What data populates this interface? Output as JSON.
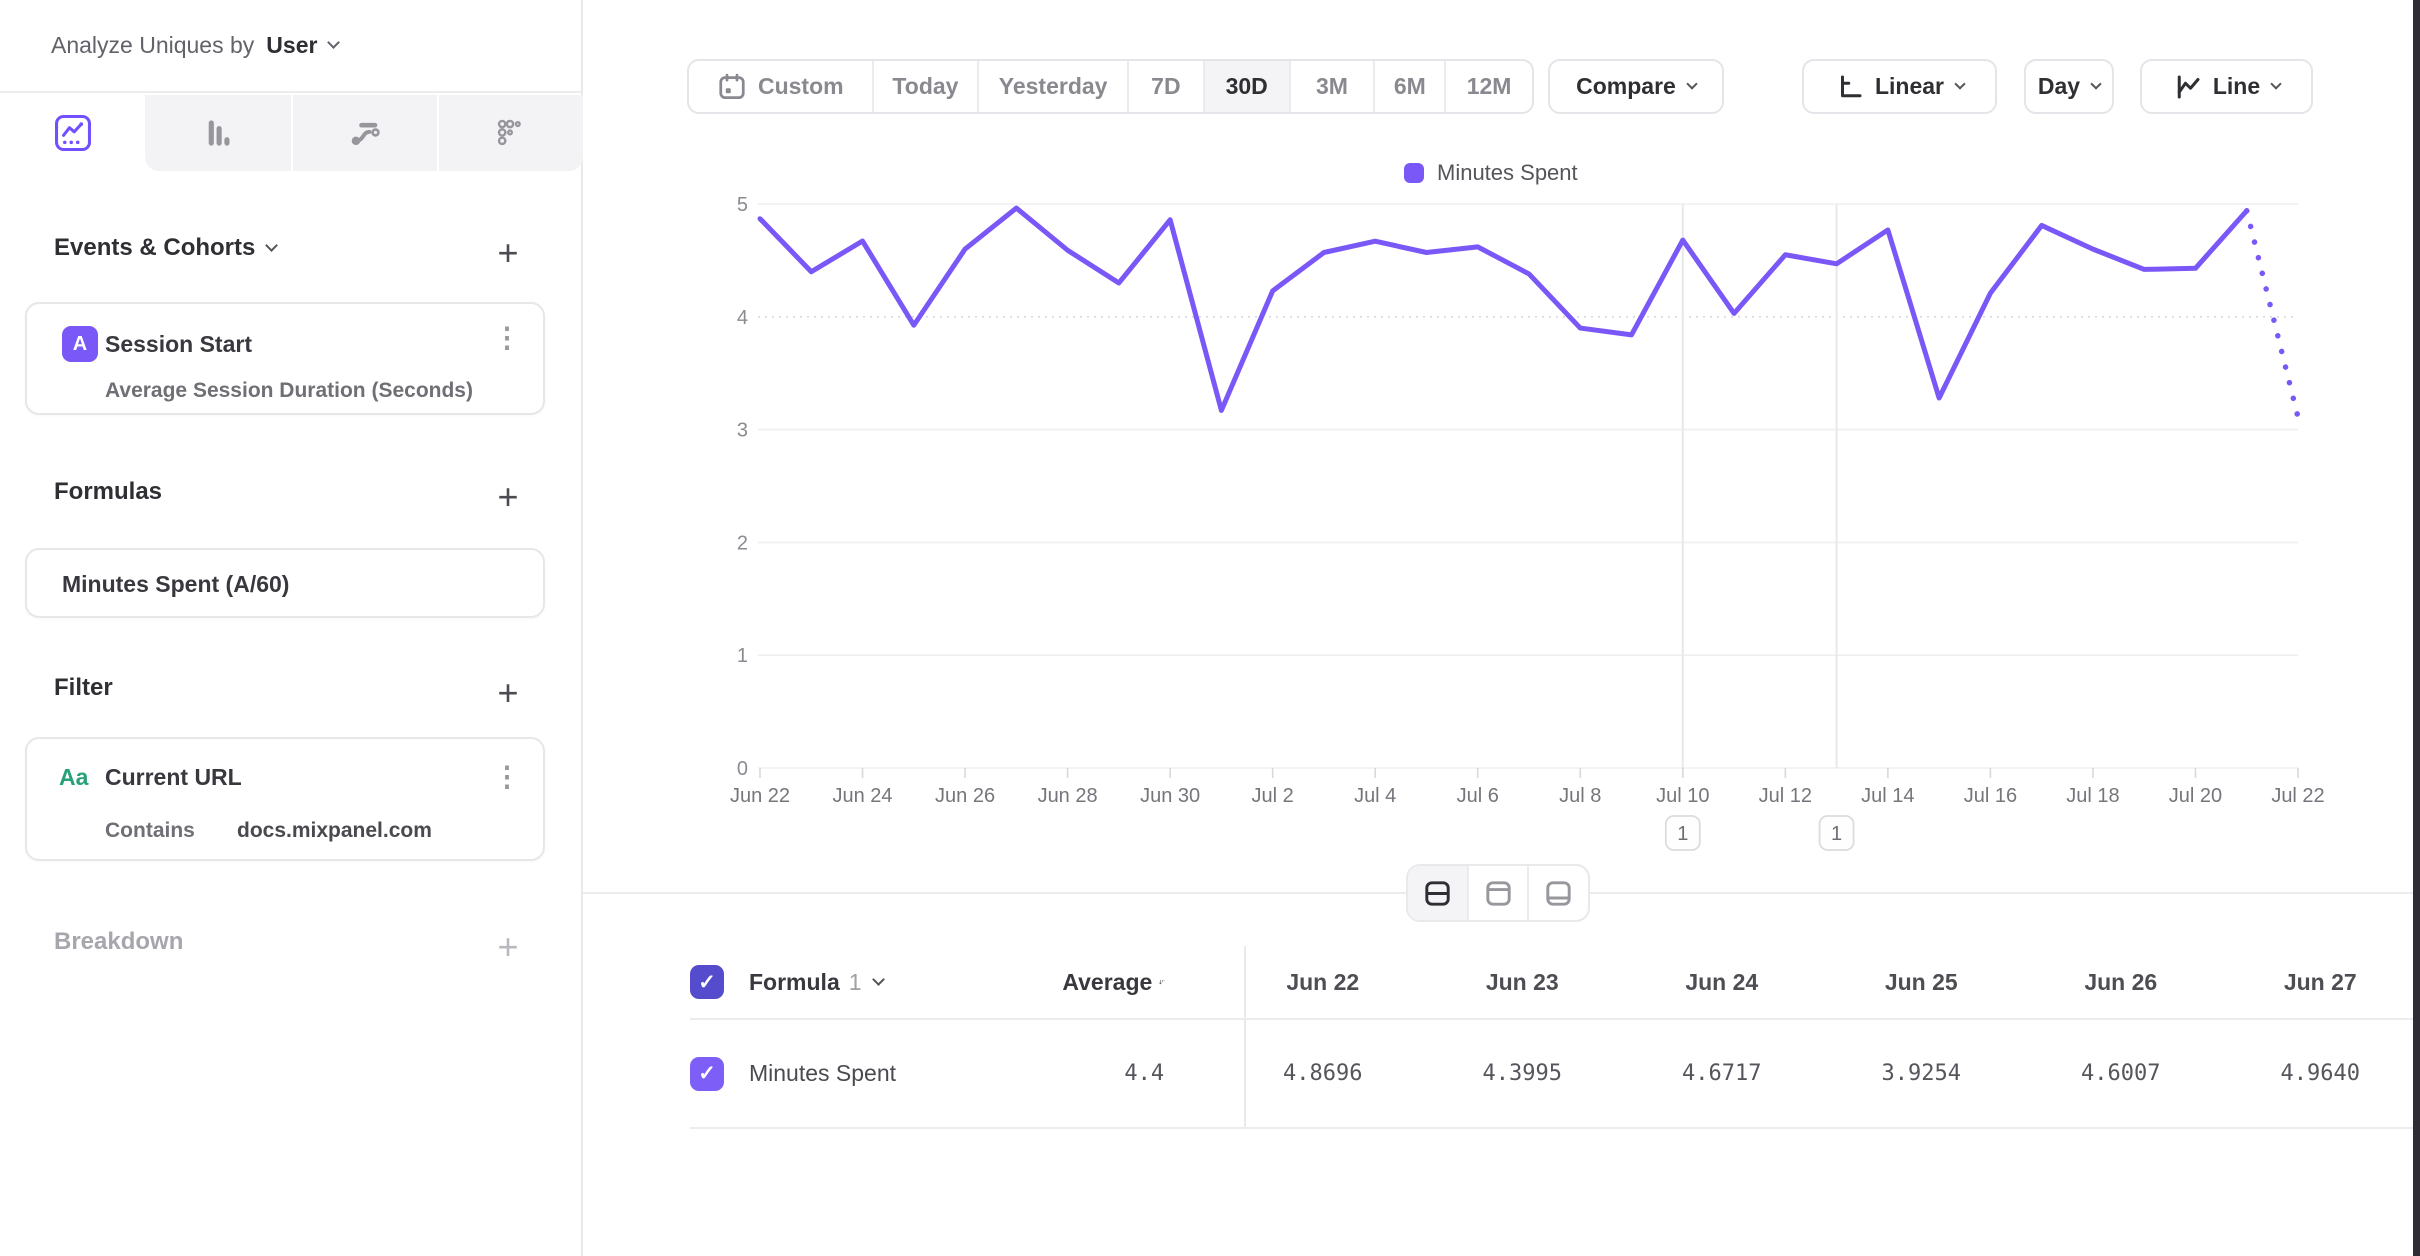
{
  "sidebar": {
    "analyze_label": "Analyze Uniques by",
    "analyze_value": "User",
    "tabs": [
      "insights-line",
      "bar",
      "flows",
      "retention"
    ],
    "events_title": "Events & Cohorts",
    "event_card": {
      "badge": "A",
      "title": "Session Start",
      "subtitle": "Average Session Duration (Seconds)"
    },
    "formulas_title": "Formulas",
    "formula_card": {
      "title": "Minutes Spent (A/60)"
    },
    "filter_title": "Filter",
    "filter_card": {
      "badge": "Aa",
      "title": "Current URL",
      "operator": "Contains",
      "value": "docs.mixpanel.com"
    },
    "breakdown_title": "Breakdown"
  },
  "toolbar": {
    "date_ranges": [
      "Custom",
      "Today",
      "Yesterday",
      "7D",
      "30D",
      "3M",
      "6M",
      "12M"
    ],
    "selected_range": "30D",
    "compare_label": "Compare",
    "scale_label": "Linear",
    "interval_label": "Day",
    "chart_type_label": "Line"
  },
  "chart_data": {
    "type": "line",
    "x": [
      "Jun 22",
      "Jun 23",
      "Jun 24",
      "Jun 25",
      "Jun 26",
      "Jun 27",
      "Jun 28",
      "Jun 29",
      "Jun 30",
      "Jul 1",
      "Jul 2",
      "Jul 3",
      "Jul 4",
      "Jul 5",
      "Jul 6",
      "Jul 7",
      "Jul 8",
      "Jul 9",
      "Jul 10",
      "Jul 11",
      "Jul 12",
      "Jul 13",
      "Jul 14",
      "Jul 15",
      "Jul 16",
      "Jul 17",
      "Jul 18",
      "Jul 19",
      "Jul 20",
      "Jul 21",
      "Jul 22"
    ],
    "x_tick_labels": [
      "Jun 22",
      "Jun 24",
      "Jun 26",
      "Jun 28",
      "Jun 30",
      "Jul 2",
      "Jul 4",
      "Jul 6",
      "Jul 8",
      "Jul 10",
      "Jul 12",
      "Jul 14",
      "Jul 16",
      "Jul 18",
      "Jul 20",
      "Jul 22"
    ],
    "y_ticks": [
      0,
      1,
      2,
      3,
      4,
      5
    ],
    "ylim": [
      0,
      5
    ],
    "grid": "horizontal",
    "legend_position": "top",
    "series": [
      {
        "name": "Minutes Spent",
        "color": "#7a58f7",
        "values": [
          4.8696,
          4.3995,
          4.6717,
          3.9254,
          4.6007,
          4.964,
          4.59,
          4.3,
          4.86,
          3.17,
          4.23,
          4.57,
          4.67,
          4.57,
          4.62,
          4.38,
          3.9,
          3.84,
          4.68,
          4.03,
          4.55,
          4.47,
          4.77,
          3.28,
          4.21,
          4.81,
          4.6,
          4.42,
          4.43,
          4.94,
          3.11
        ],
        "incomplete_from_index": 29
      }
    ],
    "annotations": [
      {
        "x": "Jul 10",
        "index": 18,
        "count": "1"
      },
      {
        "x": "Jul 13",
        "index": 21,
        "count": "1"
      }
    ]
  },
  "view_toggle": {
    "options": [
      "split-view",
      "chart-only",
      "table-bottom"
    ],
    "selected": "split-view"
  },
  "table": {
    "header": {
      "formula_label": "Formula",
      "formula_index": "1",
      "average_label": "Average"
    },
    "columns": [
      "Jun 22",
      "Jun 23",
      "Jun 24",
      "Jun 25",
      "Jun 26",
      "Jun 27"
    ],
    "row": {
      "label": "Minutes Spent",
      "average": "4.4",
      "values": [
        "4.8696",
        "4.3995",
        "4.6717",
        "3.9254",
        "4.6007",
        "4.9640"
      ]
    }
  },
  "colors": {
    "accent": "#7a58f7",
    "checkbox_header": "#554bcd",
    "checkbox_row": "#7d5ff8",
    "filter_badge_green": "#27a277",
    "grid_line": "#efeef0",
    "edge_strip": "#302c36"
  }
}
